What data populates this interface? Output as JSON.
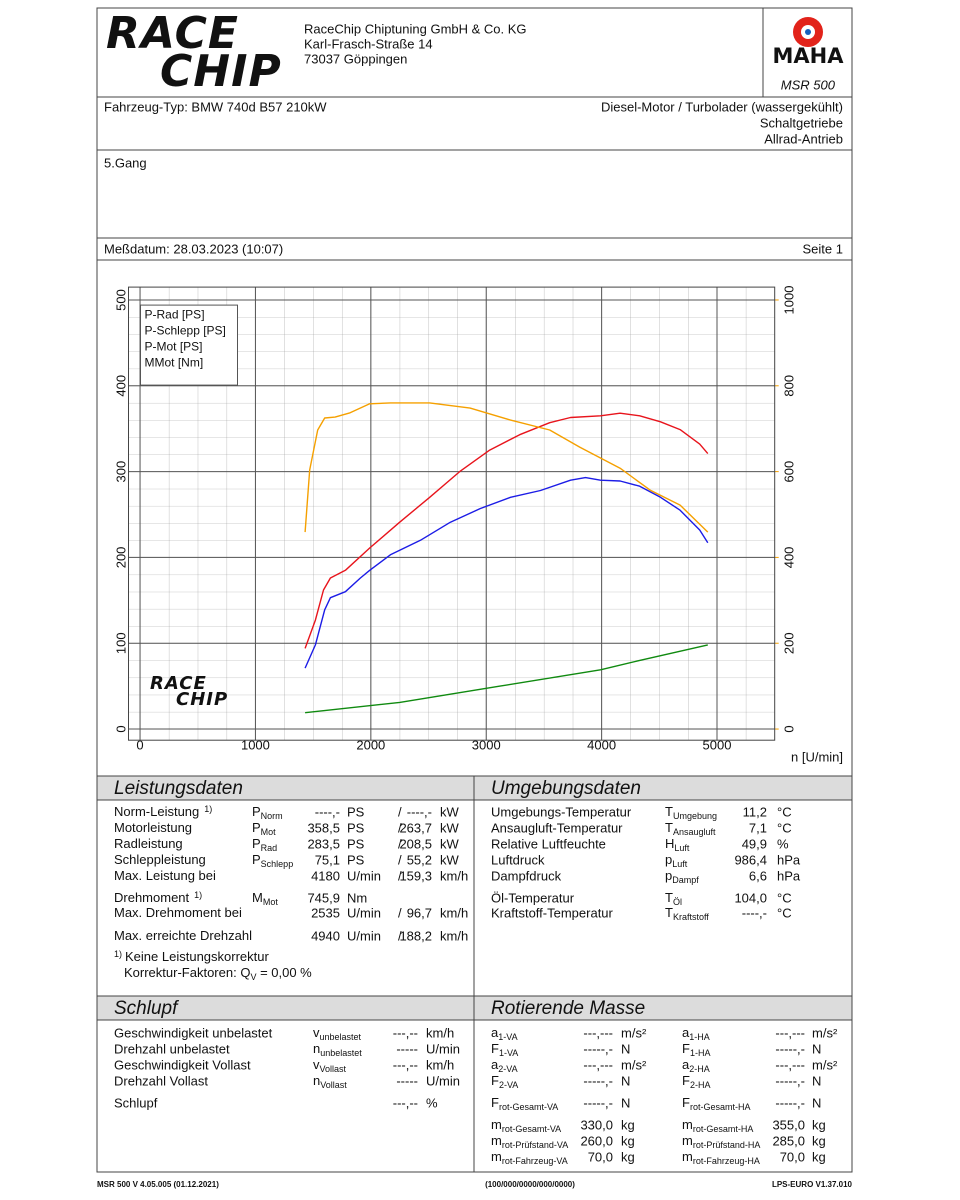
{
  "header": {
    "logo": [
      "RACE",
      "CHIP"
    ],
    "company": [
      "RaceChip Chiptuning GmbH & Co. KG",
      "Karl-Frasch-Straße 14",
      "73037 Göppingen"
    ],
    "maha": "MAHA",
    "model": "MSR 500"
  },
  "vehicle": {
    "type": "Fahrzeug-Typ:  BMW 740d B57 210kW",
    "engine": [
      "Diesel-Motor / Turbolader (wassergekühlt)",
      "Schaltgetriebe",
      "Allrad-Antrieb"
    ]
  },
  "gear": "5.Gang",
  "date": "Meßdatum: 28.03.2023 (10:07)",
  "page": "Seite 1",
  "chart_data": {
    "type": "line",
    "x_label": "n [U/min]",
    "xlim": [
      -100,
      5500
    ],
    "xticks": [
      0,
      1000,
      2000,
      3000,
      4000,
      5000
    ],
    "ylim": [
      -13,
      515
    ],
    "yticks": [
      0,
      100,
      200,
      300,
      400,
      500
    ],
    "y2lim": [
      -26,
      1030
    ],
    "y2ticks": [
      0,
      200,
      400,
      600,
      800,
      1000
    ],
    "y2color": "#f5a000",
    "grid": true,
    "legend": "upper left",
    "series": [
      {
        "name": "P-Rad [PS]",
        "color": "#1c1ce6",
        "x": [
          1430,
          1520,
          1600,
          1650,
          1780,
          1910,
          1990,
          2170,
          2430,
          2690,
          2950,
          3210,
          3470,
          3730,
          3860,
          3990,
          4160,
          4330,
          4510,
          4680,
          4850,
          4920
        ],
        "values": [
          71,
          98,
          139,
          153,
          160,
          176,
          185,
          203,
          220,
          241,
          257,
          270,
          278,
          290,
          293,
          290,
          289,
          283,
          270,
          255,
          232,
          217
        ]
      },
      {
        "name": "P-Schlepp [PS]",
        "color": "#108a10",
        "x": [
          1430,
          2250,
          3120,
          3990,
          4330,
          4920
        ],
        "values": [
          19,
          31,
          50,
          69,
          80,
          98
        ]
      },
      {
        "name": "P-Mot [PS]",
        "color": "#e8141c",
        "x": [
          1430,
          1520,
          1590,
          1650,
          1780,
          1990,
          2250,
          2510,
          2770,
          3030,
          3290,
          3550,
          3730,
          3990,
          4160,
          4330,
          4510,
          4680,
          4850,
          4920
        ],
        "values": [
          94,
          127,
          162,
          176,
          185,
          211,
          241,
          270,
          300,
          325,
          343,
          357,
          363,
          365,
          368,
          365,
          358,
          349,
          332,
          321
        ]
      },
      {
        "name": "MMot [Nm]",
        "color": "#f5a000",
        "axis": "y2",
        "x": [
          1430,
          1470,
          1540,
          1600,
          1690,
          1820,
          1990,
          2170,
          2510,
          2860,
          3210,
          3550,
          3810,
          4160,
          4420,
          4680,
          4920
        ],
        "values": [
          459,
          604,
          697,
          725,
          727,
          737,
          758,
          760,
          760,
          748,
          720,
          697,
          657,
          608,
          557,
          522,
          459
        ]
      }
    ]
  },
  "leistung": {
    "title": "Leistungsdaten",
    "rows": [
      {
        "label": "Norm-Leistung",
        "mark": "1)",
        "color": "#e8141c",
        "sym": "P",
        "sub": "Norm",
        "v1": "----,-",
        "u1": "PS",
        "sep": "/",
        "v2": "----,-",
        "u2": "kW"
      },
      {
        "label": "Motorleistung",
        "color": "#e8141c",
        "sym": "P",
        "sub": "Mot",
        "v1": "358,5",
        "u1": "PS",
        "sep": "/",
        "v2": "263,7",
        "u2": "kW"
      },
      {
        "label": "Radleistung",
        "color": "#1c1ce6",
        "sym": "P",
        "sub": "Rad",
        "v1": "283,5",
        "u1": "PS",
        "sep": "/",
        "v2": "208,5",
        "u2": "kW"
      },
      {
        "label": "Schleppleistung",
        "color": "#108a10",
        "sym": "P",
        "sub": "Schlepp",
        "v1": "75,1",
        "u1": "PS",
        "sep": "/",
        "v2": "55,2",
        "u2": "kW"
      },
      {
        "label": "Max. Leistung bei",
        "color": "#111111",
        "v1_color": "#888888",
        "v1": "4180",
        "u1": "U/min",
        "sep": "/",
        "v2": "159,3",
        "u2": "km/h"
      },
      {
        "label": "Drehmoment",
        "mark": "1)",
        "color": "#f5a000",
        "sym": "M",
        "sub": "Mot",
        "v1": "745,9",
        "u1": "Nm"
      },
      {
        "label": "Max. Drehmoment bei",
        "color": "#111111",
        "v1_color": "#888888",
        "v1": "2535",
        "u1": "U/min",
        "sep": "/",
        "v2": "96,7",
        "u2": "km/h"
      },
      {
        "label": "Max. erreichte Drehzahl",
        "color": "#111111",
        "v1_color": "#888888",
        "v1": "4940",
        "u1": "U/min",
        "sep": "/",
        "v2": "188,2",
        "u2": "km/h"
      }
    ],
    "footnote": {
      "mark": "1)",
      "text": "Keine Leistungskorrektur"
    },
    "korrektur": {
      "label": "Korrektur-Faktoren: Q",
      "sub": "V",
      "eq": " =   0,00 %"
    }
  },
  "umgebung": {
    "title": "Umgebungsdaten",
    "rows": [
      {
        "label": "Umgebungs-Temperatur",
        "sym": "T",
        "sub": "Umgebung",
        "value": "11,2",
        "unit": "°C"
      },
      {
        "label": "Ansaugluft-Temperatur",
        "sym": "T",
        "sub": "Ansaugluft",
        "value": "7,1",
        "unit": "°C"
      },
      {
        "label": "Relative Luftfeuchte",
        "sym": "H",
        "sub": "Luft",
        "value": "49,9",
        "unit": "%"
      },
      {
        "label": "Luftdruck",
        "sym": "p",
        "sub": "Luft",
        "value": "986,4",
        "unit": "hPa"
      },
      {
        "label": "Dampfdruck",
        "sym": "p",
        "sub": "Dampf",
        "value": "6,6",
        "unit": "hPa"
      },
      {
        "label": "Öl-Temperatur",
        "sym": "T",
        "sub": "Öl",
        "value": "104,0",
        "unit": "°C"
      },
      {
        "label": "Kraftstoff-Temperatur",
        "sym": "T",
        "sub": "Kraftstoff",
        "value": "----,-",
        "unit": "°C"
      }
    ]
  },
  "schlupf": {
    "title": "Schlupf",
    "rows": [
      {
        "label": "Geschwindigkeit unbelastet",
        "sym": "v",
        "sub": "unbelastet",
        "value": "---,--",
        "unit": "km/h"
      },
      {
        "label": "Drehzahl unbelastet",
        "sym": "n",
        "sub": "unbelastet",
        "value": "-----",
        "unit": "U/min"
      },
      {
        "label": "Geschwindigkeit Vollast",
        "sym": "v",
        "sub": "Vollast",
        "value": "---,--",
        "unit": "km/h"
      },
      {
        "label": "Drehzahl Vollast",
        "sym": "n",
        "sub": "Vollast",
        "value": "-----",
        "unit": "U/min"
      },
      {
        "label": "Schlupf",
        "value": "---,--",
        "unit": "%"
      }
    ]
  },
  "masse": {
    "title": "Rotierende Masse",
    "va": [
      {
        "sym": "a",
        "sub": "1-VA",
        "value": "---,---",
        "unit": "m/s²"
      },
      {
        "sym": "F",
        "sub": "1-VA",
        "value": "-----,-",
        "unit": "N"
      },
      {
        "sym": "a",
        "sub": "2-VA",
        "value": "---,---",
        "unit": "m/s²"
      },
      {
        "sym": "F",
        "sub": "2-VA",
        "value": "-----,-",
        "unit": "N"
      },
      {
        "sym": "F",
        "sub": "rot-Gesamt-VA",
        "value": "-----,-",
        "unit": "N"
      },
      {
        "sym": "m",
        "sub": "rot-Gesamt-VA",
        "value": "330,0",
        "unit": "kg"
      },
      {
        "sym": "m",
        "sub": "rot-Prüfstand-VA",
        "value": "260,0",
        "unit": "kg"
      },
      {
        "sym": "m",
        "sub": "rot-Fahrzeug-VA",
        "value": "70,0",
        "unit": "kg"
      }
    ],
    "ha": [
      {
        "sym": "a",
        "sub": "1-HA",
        "value": "---,---",
        "unit": "m/s²"
      },
      {
        "sym": "F",
        "sub": "1-HA",
        "value": "-----,-",
        "unit": "N"
      },
      {
        "sym": "a",
        "sub": "2-HA",
        "value": "---,---",
        "unit": "m/s²"
      },
      {
        "sym": "F",
        "sub": "2-HA",
        "value": "-----,-",
        "unit": "N"
      },
      {
        "sym": "F",
        "sub": "rot-Gesamt-HA",
        "value": "-----,-",
        "unit": "N"
      },
      {
        "sym": "m",
        "sub": "rot-Gesamt-HA",
        "value": "355,0",
        "unit": "kg"
      },
      {
        "sym": "m",
        "sub": "rot-Prüfstand-HA",
        "value": "285,0",
        "unit": "kg"
      },
      {
        "sym": "m",
        "sub": "rot-Fahrzeug-HA",
        "value": "70,0",
        "unit": "kg"
      }
    ]
  },
  "footer": {
    "left": "MSR 500 V 4.05.005 (01.12.2021)",
    "center": "(100/000/0000/000/0000)",
    "right": "LPS-EURO V1.37.010"
  }
}
